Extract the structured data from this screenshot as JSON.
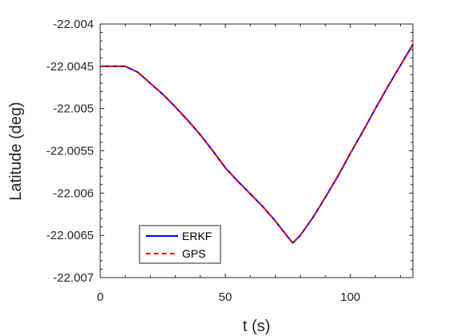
{
  "chart_data": {
    "type": "line",
    "xlabel": "t (s)",
    "ylabel": "Latitude (deg)",
    "xlim": [
      0,
      125
    ],
    "ylim": [
      -22.007,
      -22.004
    ],
    "xticks": [
      0,
      50,
      100
    ],
    "xtick_labels": [
      "0",
      "50",
      "100"
    ],
    "yticks": [
      -22.004,
      -22.0045,
      -22.005,
      -22.0055,
      -22.006,
      -22.0065,
      -22.007
    ],
    "ytick_labels": [
      "-22.004",
      "-22.0045",
      "-22.005",
      "-22.0055",
      "-22.006",
      "-22.0065",
      "-22.007"
    ],
    "grid": false,
    "box": true,
    "legend_position": "bottom-left",
    "series": [
      {
        "name": "ERKF",
        "color": "#0000ff",
        "style": "solid",
        "x": [
          0,
          5,
          10,
          15,
          20,
          25,
          30,
          35,
          40,
          45,
          50,
          55,
          60,
          65,
          70,
          75,
          77,
          80,
          85,
          90,
          95,
          100,
          105,
          110,
          115,
          120,
          125
        ],
        "y": [
          -22.0045,
          -22.0045,
          -22.0045,
          -22.00457,
          -22.0047,
          -22.00483,
          -22.00498,
          -22.00514,
          -22.00531,
          -22.0055,
          -22.0057,
          -22.00586,
          -22.00601,
          -22.00616,
          -22.00633,
          -22.00652,
          -22.00659,
          -22.0065,
          -22.00629,
          -22.00605,
          -22.0058,
          -22.00553,
          -22.00527,
          -22.005,
          -22.00474,
          -22.00449,
          -22.00424
        ]
      },
      {
        "name": "GPS",
        "color": "#ff0000",
        "style": "dashed",
        "x": [
          0,
          5,
          10,
          15,
          20,
          25,
          30,
          35,
          40,
          45,
          50,
          55,
          60,
          65,
          70,
          75,
          77,
          80,
          85,
          90,
          95,
          100,
          105,
          110,
          115,
          120,
          125
        ],
        "y": [
          -22.0045,
          -22.0045,
          -22.0045,
          -22.00457,
          -22.0047,
          -22.00483,
          -22.00498,
          -22.00514,
          -22.00531,
          -22.0055,
          -22.0057,
          -22.00586,
          -22.00601,
          -22.00616,
          -22.00633,
          -22.00652,
          -22.00659,
          -22.0065,
          -22.00629,
          -22.00605,
          -22.0058,
          -22.00553,
          -22.00527,
          -22.005,
          -22.00474,
          -22.00449,
          -22.00424
        ]
      }
    ]
  }
}
